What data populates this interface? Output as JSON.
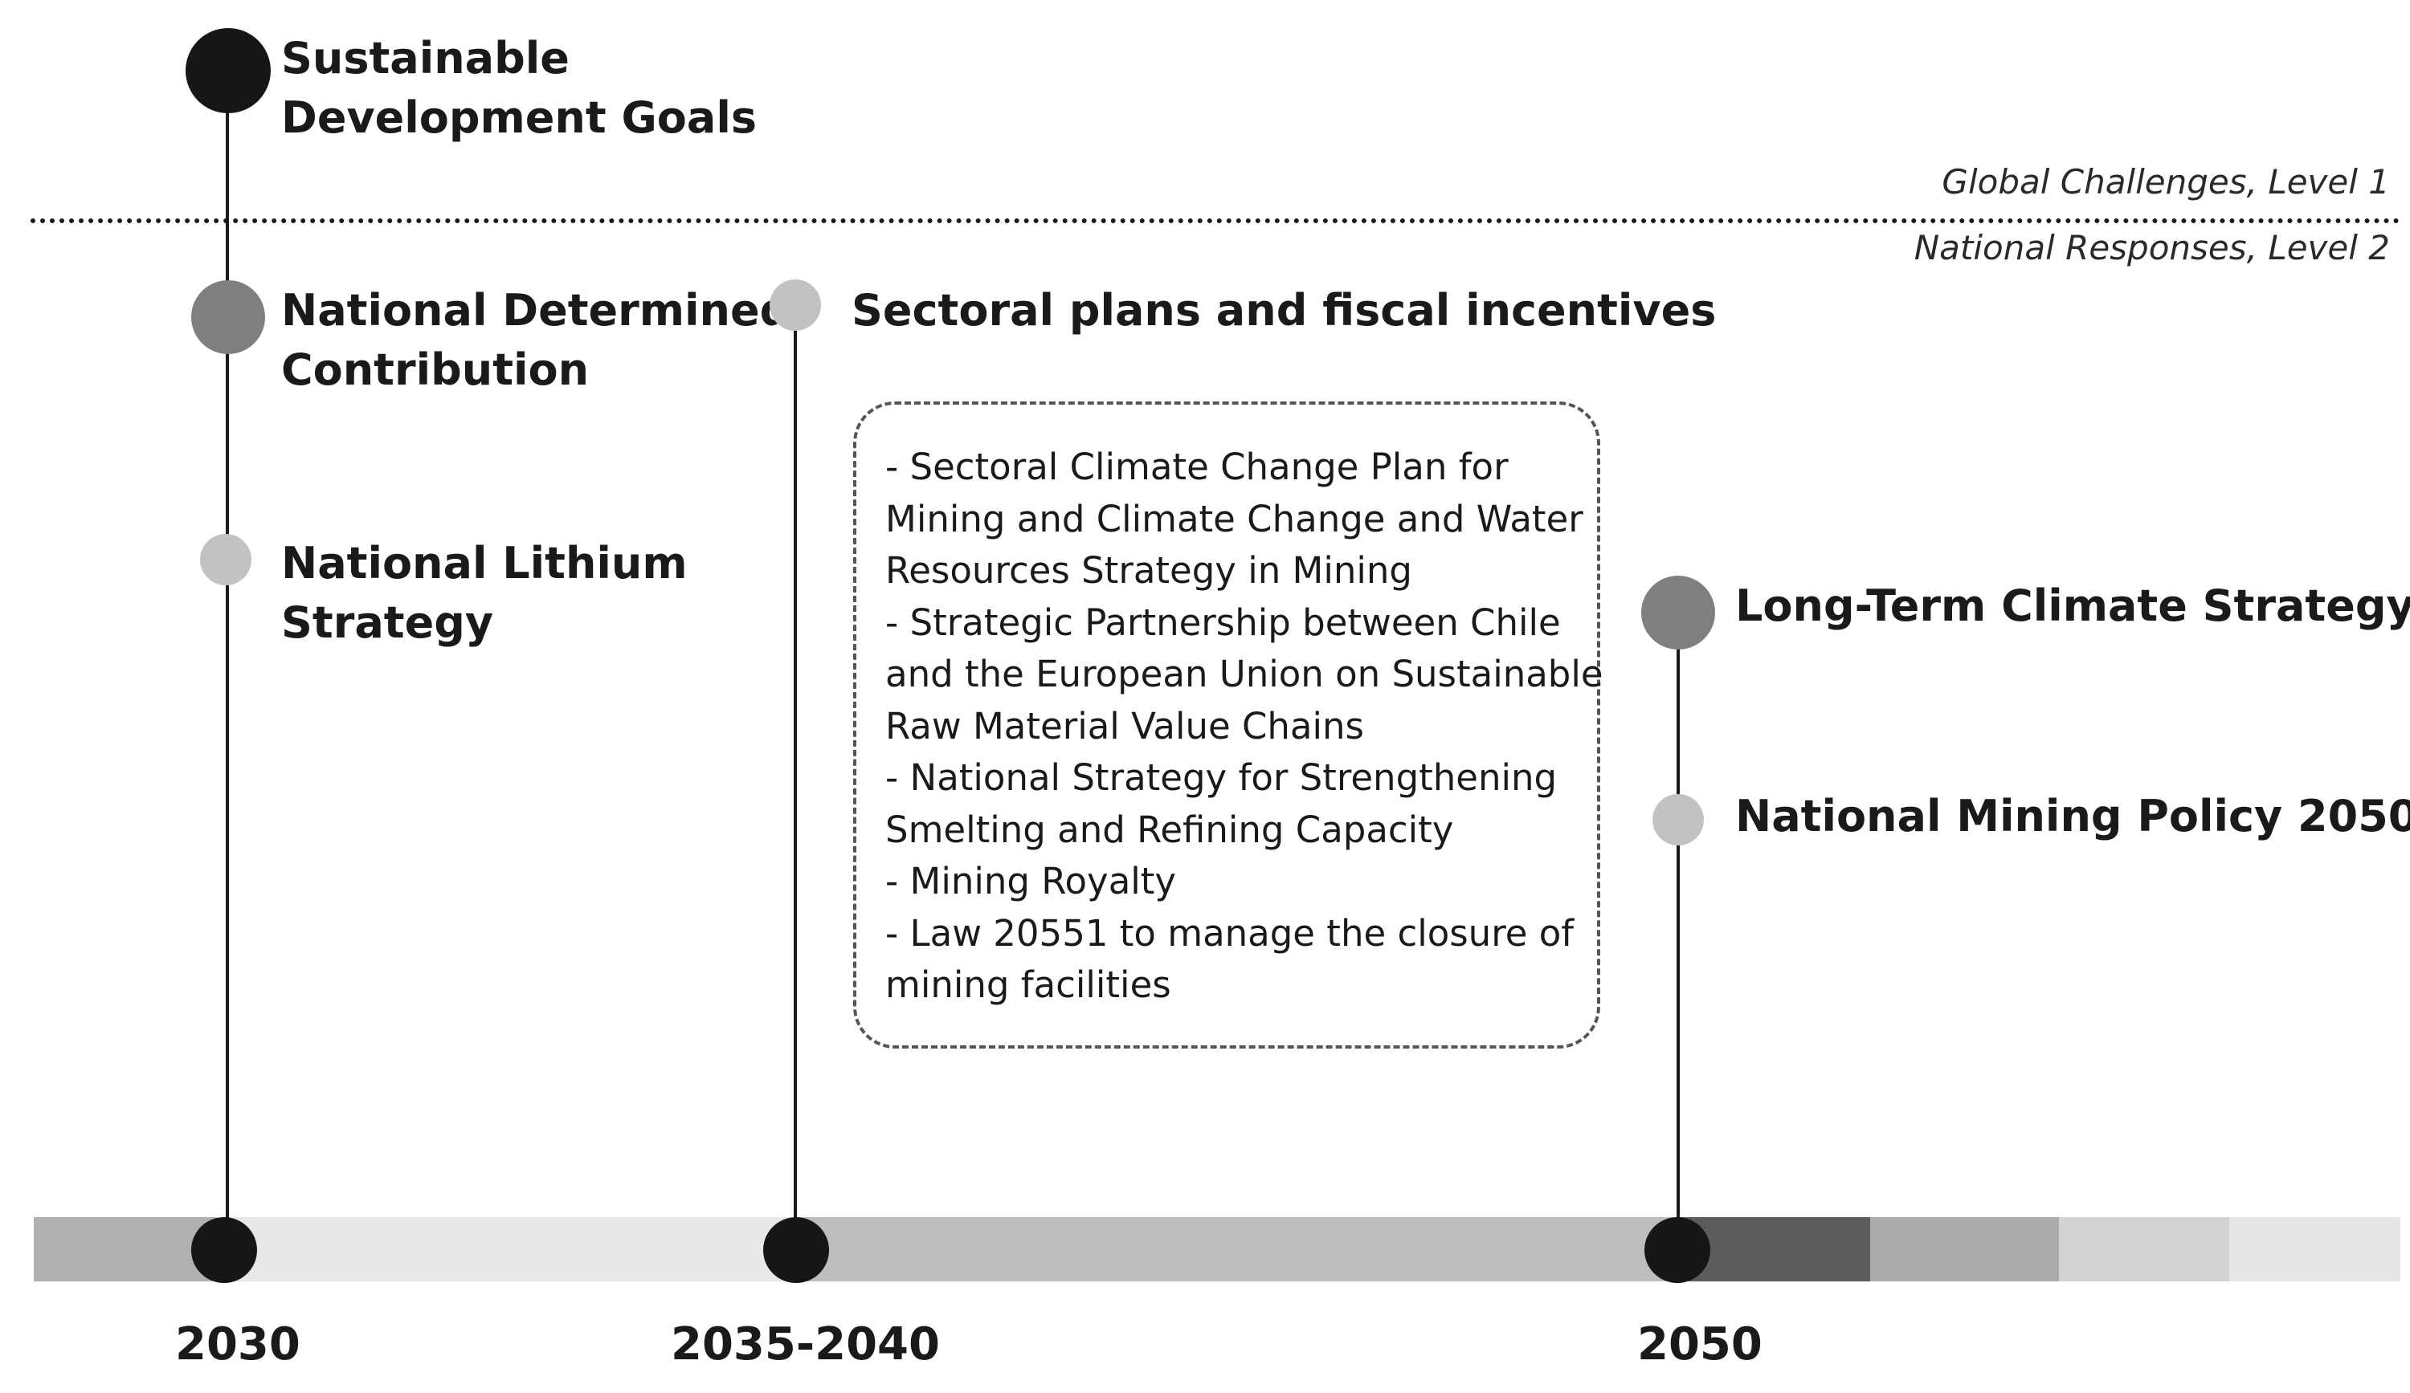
{
  "level_labels": {
    "global": "Global Challenges, Level 1",
    "national": "National Responses, Level 2"
  },
  "milestones_2030": {
    "sdg_line1": "Sustainable",
    "sdg_line2": "Development Goals",
    "ndc_line1": "National Determined",
    "ndc_line2": "Contribution",
    "lithium_line1": "National Lithium",
    "lithium_line2": "Strategy"
  },
  "milestones_2035": {
    "title": "Sectoral plans and fiscal incentives",
    "box_lines": [
      "- Sectoral Climate Change Plan for",
      "Mining and Climate Change and Water",
      "Resources Strategy in Mining",
      "- Strategic Partnership between Chile",
      "and the European Union on Sustainable",
      "Raw Material Value Chains",
      "- National Strategy for Strengthening",
      "Smelting and Refining Capacity",
      "- Mining Royalty",
      "- Law 20551 to manage the closure of",
      "mining facilities"
    ]
  },
  "milestones_2050": {
    "long_term": "Long-Term Climate Strategy",
    "mining_policy": "National Mining Policy 2050"
  },
  "years": [
    "2030",
    "2035-2040",
    "2050"
  ],
  "colors": {
    "dot_black": "#161616",
    "dot_dark": "#7f7f7f",
    "dot_light": "#c2c2c2",
    "bar_segments": [
      "#b0b0b0",
      "#e8e8e8",
      "#bdbdbd",
      "#5c5c5c",
      "#ababab",
      "#d3d3d3",
      "#e6e6e6"
    ]
  }
}
